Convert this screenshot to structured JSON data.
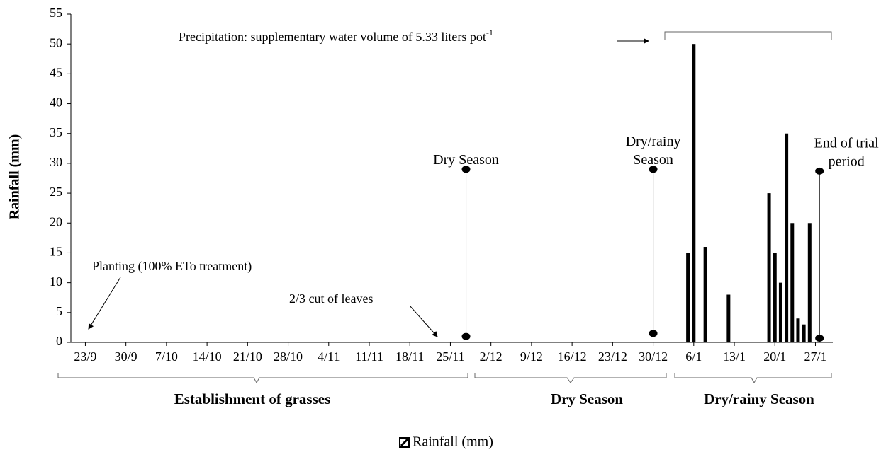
{
  "chart_data": {
    "type": "bar",
    "y_label": "Rainfall (mm)",
    "ylim": [
      0,
      55
    ],
    "yticks": [
      0,
      5,
      10,
      15,
      20,
      25,
      30,
      35,
      40,
      45,
      50,
      55
    ],
    "xlim": [
      -2.5,
      129
    ],
    "xticks": [
      {
        "value": 0,
        "label": "23/9"
      },
      {
        "value": 7,
        "label": "30/9"
      },
      {
        "value": 14,
        "label": "7/10"
      },
      {
        "value": 21,
        "label": "14/10"
      },
      {
        "value": 28,
        "label": "21/10"
      },
      {
        "value": 35,
        "label": "28/10"
      },
      {
        "value": 42,
        "label": "4/11"
      },
      {
        "value": 49,
        "label": "11/11"
      },
      {
        "value": 56,
        "label": "18/11"
      },
      {
        "value": 63,
        "label": "25/11"
      },
      {
        "value": 70,
        "label": "2/12"
      },
      {
        "value": 77,
        "label": "9/12"
      },
      {
        "value": 84,
        "label": "16/12"
      },
      {
        "value": 91,
        "label": "23/12"
      },
      {
        "value": 98,
        "label": "30/12"
      },
      {
        "value": 105,
        "label": "6/1"
      },
      {
        "value": 112,
        "label": "13/1"
      },
      {
        "value": 119,
        "label": "20/1"
      },
      {
        "value": 126,
        "label": "27/1"
      }
    ],
    "x": [
      104,
      105,
      107,
      111,
      118,
      119,
      120,
      121,
      122,
      123,
      124,
      125
    ],
    "series": [
      {
        "name": "Rainfall  (mm)",
        "color": "#000000",
        "values": [
          15,
          50,
          16,
          8,
          25,
          15,
          10,
          35,
          20,
          4,
          3,
          20
        ]
      }
    ],
    "markers": [
      {
        "label": [
          "Dry Season"
        ],
        "x": 65.7,
        "y": [
          1,
          29
        ]
      },
      {
        "label": [
          "Dry/rainy",
          "Season"
        ],
        "x": 98,
        "y": [
          1.5,
          29
        ]
      },
      {
        "label": [
          "End of trial",
          "period"
        ],
        "x": 126.7,
        "y": [
          0.7,
          28.7
        ]
      }
    ],
    "annotations": {
      "planting": "Planting (100% ETo treatment)",
      "cut": "2/3 cut of leaves",
      "precipitation": "Precipitation: supplementary water volume of 5.33 liters pot",
      "precipitation_sup": "-1"
    },
    "periods": [
      "Establishment of grasses",
      "Dry Season",
      "Dry/rainy Season"
    ]
  }
}
